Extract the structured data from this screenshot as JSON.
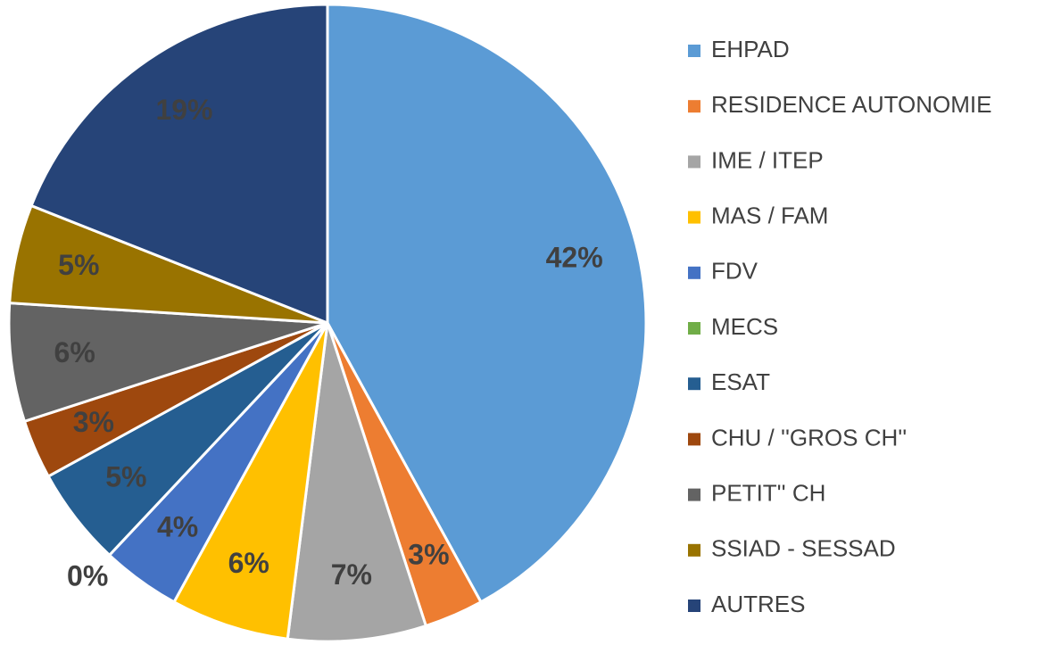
{
  "chart_data": {
    "type": "pie",
    "categories": [
      "EHPAD",
      "RESIDENCE AUTONOMIE",
      "IME / ITEP",
      "MAS / FAM",
      "FDV",
      "MECS",
      "ESAT",
      "CHU / ''GROS CH''",
      "PETIT'' CH",
      "SSIAD - SESSAD",
      "AUTRES"
    ],
    "values": [
      42,
      3,
      7,
      6,
      4,
      0,
      5,
      3,
      6,
      5,
      19
    ],
    "value_labels": [
      "42%",
      "3%",
      "7%",
      "6%",
      "4%",
      "0%",
      "5%",
      "3%",
      "6%",
      "5%",
      "19%"
    ],
    "colors": [
      "#5b9bd5",
      "#ed7d31",
      "#a5a5a5",
      "#ffc000",
      "#4472c4",
      "#70ad47",
      "#255e91",
      "#9e480e",
      "#636363",
      "#997300",
      "#264478"
    ],
    "legend": "right"
  }
}
